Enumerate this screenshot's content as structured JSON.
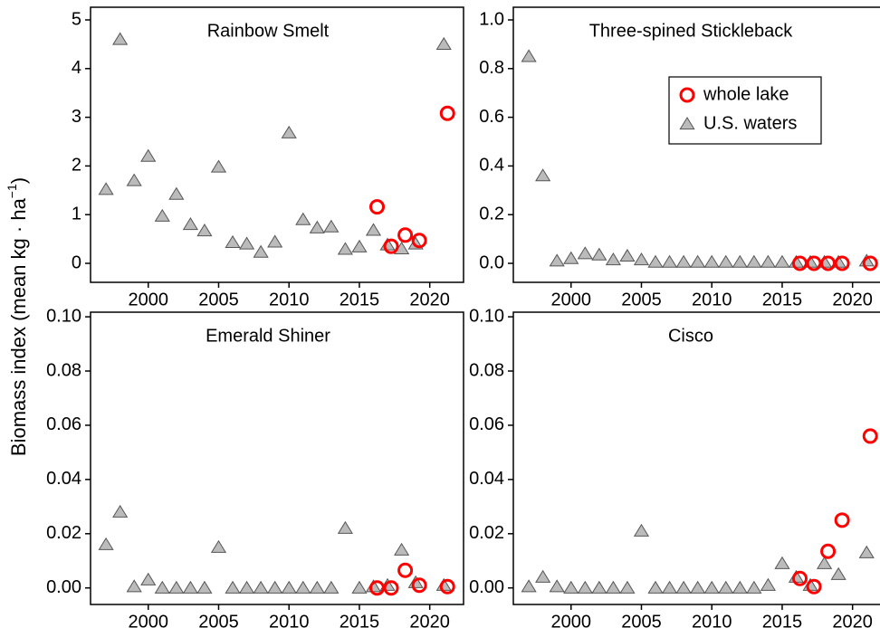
{
  "ylabel": [
    "Biomass index (mean kg · ha",
    "−1",
    ")"
  ],
  "chart_data": [
    {
      "type": "scatter",
      "title": "Rainbow Smelt",
      "xlim": [
        1995.9,
        2022.4
      ],
      "xticks": [
        2000,
        2005,
        2010,
        2015,
        2020
      ],
      "ylim": [
        -0.39,
        5.26
      ],
      "yticks": [
        0,
        1,
        2,
        3,
        4,
        5
      ],
      "legend": false,
      "series": [
        {
          "name": "U.S. waters",
          "color": "#bbbbbb",
          "marker": "triangle",
          "x": [
            1997,
            1998,
            1999,
            2000,
            2001,
            2002,
            2003,
            2004,
            2005,
            2006,
            2007,
            2008,
            2009,
            2010,
            2011,
            2012,
            2013,
            2014,
            2015,
            2016,
            2017,
            2018,
            2019,
            2021
          ],
          "values": [
            1.52,
            4.6,
            1.7,
            2.2,
            0.97,
            1.42,
            0.8,
            0.67,
            1.98,
            0.43,
            0.4,
            0.23,
            0.44,
            2.68,
            0.9,
            0.73,
            0.75,
            0.29,
            0.34,
            0.68,
            0.38,
            0.3,
            0.4,
            4.5
          ]
        },
        {
          "name": "whole lake",
          "color": "#ff0000",
          "marker": "circle",
          "x": [
            2016,
            2017,
            2018,
            2019,
            2021
          ],
          "values": [
            1.16,
            0.35,
            0.58,
            0.47,
            3.08
          ]
        }
      ]
    },
    {
      "type": "scatter",
      "title": "Three-spined Stickleback",
      "xlim": [
        1995.9,
        2022.4
      ],
      "xticks": [
        2000,
        2005,
        2010,
        2015,
        2020
      ],
      "ylim": [
        -0.078,
        1.052
      ],
      "yticks": [
        {
          "value": 0,
          "label": "0.0"
        },
        {
          "value": 0.2,
          "label": "0.2"
        },
        {
          "value": 0.4,
          "label": "0.4"
        },
        {
          "value": 0.6,
          "label": "0.6"
        },
        {
          "value": 0.8,
          "label": "0.8"
        },
        {
          "value": 1,
          "label": "1.0"
        }
      ],
      "legend": "upper right",
      "series": [
        {
          "name": "U.S. waters",
          "color": "#bbbbbb",
          "marker": "triangle",
          "x": [
            1997,
            1998,
            1999,
            2000,
            2001,
            2002,
            2003,
            2004,
            2005,
            2006,
            2007,
            2008,
            2009,
            2010,
            2011,
            2012,
            2013,
            2014,
            2015,
            2016,
            2017,
            2018,
            2019,
            2021
          ],
          "values": [
            0.85,
            0.36,
            0.01,
            0.02,
            0.04,
            0.035,
            0.015,
            0.03,
            0.015,
            0.005,
            0.005,
            0.005,
            0.005,
            0.005,
            0.005,
            0.005,
            0.005,
            0.005,
            0.005,
            0.005,
            0.005,
            0.005,
            0.005,
            0.01
          ]
        },
        {
          "name": "whole lake",
          "color": "#ff0000",
          "marker": "circle",
          "x": [
            2016,
            2017,
            2018,
            2019,
            2021
          ],
          "values": [
            0,
            0,
            0,
            0,
            0
          ]
        }
      ]
    },
    {
      "type": "scatter",
      "title": "Emerald Shiner",
      "xlim": [
        1995.9,
        2022.4
      ],
      "xticks": [
        2000,
        2005,
        2010,
        2015,
        2020
      ],
      "ylim": [
        -0.0061,
        0.1017
      ],
      "yticks": [
        {
          "value": 0,
          "label": "0.00"
        },
        {
          "value": 0.02,
          "label": "0.02"
        },
        {
          "value": 0.04,
          "label": "0.04"
        },
        {
          "value": 0.06,
          "label": "0.06"
        },
        {
          "value": 0.08,
          "label": "0.08"
        },
        {
          "value": 0.1,
          "label": "0.10"
        }
      ],
      "legend": false,
      "series": [
        {
          "name": "U.S. waters",
          "color": "#bbbbbb",
          "marker": "triangle",
          "x": [
            1997,
            1998,
            1999,
            2000,
            2001,
            2002,
            2003,
            2004,
            2005,
            2006,
            2007,
            2008,
            2009,
            2010,
            2011,
            2012,
            2013,
            2014,
            2015,
            2016,
            2017,
            2018,
            2019,
            2021
          ],
          "values": [
            0.016,
            0.028,
            0.0005,
            0.003,
            0,
            0,
            0,
            0,
            0.015,
            0,
            0,
            0,
            0,
            0,
            0,
            0,
            0,
            0.022,
            0,
            0.0005,
            0.001,
            0.014,
            0.002,
            0.001
          ]
        },
        {
          "name": "whole lake",
          "color": "#ff0000",
          "marker": "circle",
          "x": [
            2016,
            2017,
            2018,
            2019,
            2021
          ],
          "values": [
            0,
            0,
            0.0065,
            0.001,
            0.0005
          ]
        }
      ]
    },
    {
      "type": "scatter",
      "title": "Cisco",
      "xlim": [
        1995.9,
        2022.4
      ],
      "xticks": [
        2000,
        2005,
        2010,
        2015,
        2020
      ],
      "ylim": [
        -0.0061,
        0.1017
      ],
      "yticks": [
        {
          "value": 0,
          "label": "0.00"
        },
        {
          "value": 0.02,
          "label": "0.02"
        },
        {
          "value": 0.04,
          "label": "0.04"
        },
        {
          "value": 0.06,
          "label": "0.06"
        },
        {
          "value": 0.08,
          "label": "0.08"
        },
        {
          "value": 0.1,
          "label": "0.10"
        }
      ],
      "legend": false,
      "series": [
        {
          "name": "U.S. waters",
          "color": "#bbbbbb",
          "marker": "triangle",
          "x": [
            1997,
            1998,
            1999,
            2000,
            2001,
            2002,
            2003,
            2004,
            2005,
            2006,
            2007,
            2008,
            2009,
            2010,
            2011,
            2012,
            2013,
            2014,
            2015,
            2016,
            2017,
            2018,
            2019,
            2021
          ],
          "values": [
            0.0005,
            0.004,
            0.0005,
            0,
            0,
            0,
            0,
            0,
            0.021,
            0,
            0,
            0,
            0,
            0,
            0,
            0,
            0,
            0.001,
            0.009,
            0.004,
            0.001,
            0.009,
            0.005,
            0.013
          ]
        },
        {
          "name": "whole lake",
          "color": "#ff0000",
          "marker": "circle",
          "x": [
            2016,
            2017,
            2018,
            2019,
            2021
          ],
          "values": [
            0.0035,
            0.0005,
            0.0135,
            0.025,
            0.056
          ]
        }
      ]
    }
  ]
}
